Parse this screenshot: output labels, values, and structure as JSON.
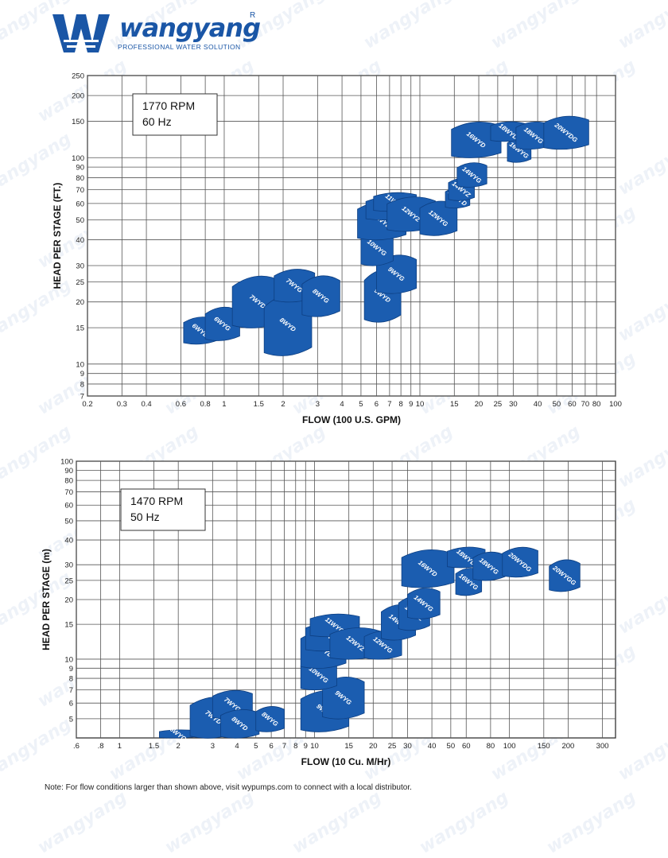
{
  "brand": {
    "name": "wangyang",
    "registered": "R",
    "tagline": "PROFESSIONAL WATER SOLUTION",
    "watermark": "wangyang",
    "color": "#1a56a6"
  },
  "footnote": "Note: For flow conditions larger than shown above, visit wypumps.com to connect with a local distributor.",
  "chart_data": [
    {
      "type": "area",
      "scale": "log-log",
      "grid": true,
      "legend": "none",
      "annotation": [
        "1770 RPM",
        "60 Hz"
      ],
      "xlabel": "FLOW (100 U.S. GPM)",
      "ylabel": "HEAD PER STAGE (FT.)",
      "xlim": [
        0.2,
        100
      ],
      "ylim": [
        7,
        250
      ],
      "xticks": [
        "0.2",
        "0.3",
        "0.4",
        "0.6",
        "0.8",
        "1",
        "1.5",
        "2",
        "3",
        "4",
        "5",
        "6",
        "7",
        "8",
        "9",
        "10",
        "15",
        "20",
        "25",
        "30",
        "40",
        "50",
        "60",
        "70",
        "80",
        "100"
      ],
      "yticks": [
        "7",
        "8",
        "9",
        "10",
        "15",
        "20",
        "25",
        "30",
        "40",
        "50",
        "60",
        "70",
        "80",
        "90",
        "100",
        "150",
        "200",
        "250"
      ],
      "fill_color": "#1b5db0",
      "series": [
        {
          "name": "6WYD",
          "x": [
            0.62,
            0.92
          ],
          "y": [
            12.5,
            17
          ]
        },
        {
          "name": "6WYG",
          "x": [
            0.8,
            1.2
          ],
          "y": [
            13,
            19
          ]
        },
        {
          "name": "7WYD",
          "x": [
            1.1,
            2.0
          ],
          "y": [
            15,
            27
          ]
        },
        {
          "name": "8WYD",
          "x": [
            1.6,
            2.8
          ],
          "y": [
            11,
            22
          ]
        },
        {
          "name": "7WYG",
          "x": [
            1.8,
            2.9
          ],
          "y": [
            20,
            29
          ]
        },
        {
          "name": "8WYG",
          "x": [
            2.5,
            3.9
          ],
          "y": [
            17,
            27
          ]
        },
        {
          "name": "9WYD",
          "x": [
            5.2,
            8.0
          ],
          "y": [
            16,
            29
          ]
        },
        {
          "name": "9WYG",
          "x": [
            6.0,
            9.6
          ],
          "y": [
            22,
            34
          ]
        },
        {
          "name": "10WYG",
          "x": [
            5.0,
            7.3
          ],
          "y": [
            30,
            45
          ]
        },
        {
          "name": "11WYD",
          "x": [
            4.8,
            8.5
          ],
          "y": [
            40,
            62
          ]
        },
        {
          "name": "11WYZ",
          "x": [
            5.3,
            9.0
          ],
          "y": [
            50,
            65
          ]
        },
        {
          "name": "11WYG",
          "x": [
            5.8,
            9.6
          ],
          "y": [
            55,
            68
          ]
        },
        {
          "name": "12WYZ",
          "x": [
            6.8,
            12.0
          ],
          "y": [
            44,
            65
          ]
        },
        {
          "name": "12WYG",
          "x": [
            10.0,
            15.5
          ],
          "y": [
            42,
            62
          ]
        },
        {
          "name": "14WYD",
          "x": [
            13.5,
            18.0
          ],
          "y": [
            57,
            72
          ]
        },
        {
          "name": "14WYZ",
          "x": [
            14.0,
            19.0
          ],
          "y": [
            62,
            80
          ]
        },
        {
          "name": "14WYG",
          "x": [
            15.5,
            22.0
          ],
          "y": [
            72,
            95
          ]
        },
        {
          "name": "16WYD",
          "x": [
            14.5,
            26.0
          ],
          "y": [
            100,
            150
          ]
        },
        {
          "name": "16WYG",
          "x": [
            28.0,
            37.0
          ],
          "y": [
            95,
            125
          ]
        },
        {
          "name": "18WYD",
          "x": [
            23.0,
            35.0
          ],
          "y": [
            120,
            150
          ]
        },
        {
          "name": "18WYG",
          "x": [
            31.0,
            47.0
          ],
          "y": [
            110,
            150
          ]
        },
        {
          "name": "20WYDG",
          "x": [
            43.0,
            73.0
          ],
          "y": [
            110,
            160
          ]
        }
      ]
    },
    {
      "type": "area",
      "scale": "log-log",
      "grid": true,
      "legend": "none",
      "annotation": [
        "1470 RPM",
        "50 Hz"
      ],
      "xlabel": "FLOW (10 Cu. M/Hr)",
      "ylabel": "HEAD PER STAGE (m)",
      "xlim": [
        0.6,
        350
      ],
      "ylim": [
        4,
        100
      ],
      "xticks": [
        ".6",
        ".8",
        "1",
        "1.5",
        "2",
        "3",
        "4",
        "5",
        "6",
        "7",
        "8",
        "9",
        "10",
        "15",
        "20",
        "25",
        "30",
        "40",
        "50",
        "60",
        "80",
        "100",
        "150",
        "200",
        "300"
      ],
      "yticks": [
        "5",
        "6",
        "7",
        "8",
        "9",
        "10",
        "15",
        "20",
        "25",
        "30",
        "40",
        "50",
        "60",
        "70",
        "80",
        "90",
        "100"
      ],
      "fill_color": "#1b5db0",
      "series": [
        {
          "name": "6WYG",
          "x": [
            1.6,
            2.5
          ],
          "y": [
            4,
            4.4
          ]
        },
        {
          "name": "7WYD",
          "x": [
            2.3,
            4.0
          ],
          "y": [
            4,
            6.5
          ]
        },
        {
          "name": "7WYG",
          "x": [
            3.0,
            4.8
          ],
          "y": [
            5.0,
            7.0
          ]
        },
        {
          "name": "8WYD",
          "x": [
            3.3,
            5.2
          ],
          "y": [
            4,
            5.6
          ]
        },
        {
          "name": "8WYG",
          "x": [
            5.0,
            7.0
          ],
          "y": [
            4.3,
            5.8
          ]
        },
        {
          "name": "9WYD",
          "x": [
            8.5,
            15.0
          ],
          "y": [
            4.3,
            7.0
          ]
        },
        {
          "name": "9WYG",
          "x": [
            11.0,
            18.0
          ],
          "y": [
            5.0,
            8.2
          ]
        },
        {
          "name": "10WYG",
          "x": [
            8.5,
            13.0
          ],
          "y": [
            7.0,
            10.0
          ]
        },
        {
          "name": "11WYD",
          "x": [
            8.5,
            14.5
          ],
          "y": [
            9.0,
            14.0
          ]
        },
        {
          "name": "11WYZ",
          "x": [
            9.0,
            16.0
          ],
          "y": [
            11.0,
            15.5
          ]
        },
        {
          "name": "11WYG",
          "x": [
            9.5,
            17.0
          ],
          "y": [
            13.0,
            17.0
          ]
        },
        {
          "name": "12WYZ",
          "x": [
            12.0,
            22.0
          ],
          "y": [
            10.0,
            14.5
          ]
        },
        {
          "name": "12WYG",
          "x": [
            18.0,
            28.0
          ],
          "y": [
            10.0,
            14.0
          ]
        },
        {
          "name": "14WYD",
          "x": [
            22.0,
            33.0
          ],
          "y": [
            12.5,
            19.0
          ]
        },
        {
          "name": "14WYZ",
          "x": [
            27.0,
            39.0
          ],
          "y": [
            14.0,
            21.0
          ]
        },
        {
          "name": "14WYG",
          "x": [
            30.0,
            44.0
          ],
          "y": [
            16.0,
            23.0
          ]
        },
        {
          "name": "16WYD",
          "x": [
            28.0,
            52.0
          ],
          "y": [
            23.0,
            36.0
          ]
        },
        {
          "name": "16WYG",
          "x": [
            53.0,
            72.0
          ],
          "y": [
            21.0,
            29.0
          ]
        },
        {
          "name": "18WYD",
          "x": [
            48.0,
            75.0
          ],
          "y": [
            29.0,
            37.0
          ]
        },
        {
          "name": "18WYG",
          "x": [
            65.0,
            95.0
          ],
          "y": [
            25.0,
            35.0
          ]
        },
        {
          "name": "20WYDG",
          "x": [
            92.0,
            140.0
          ],
          "y": [
            26.0,
            37.0
          ]
        },
        {
          "name": "20WYGG",
          "x": [
            160.0,
            230.0
          ],
          "y": [
            22.0,
            32.0
          ]
        }
      ]
    }
  ]
}
